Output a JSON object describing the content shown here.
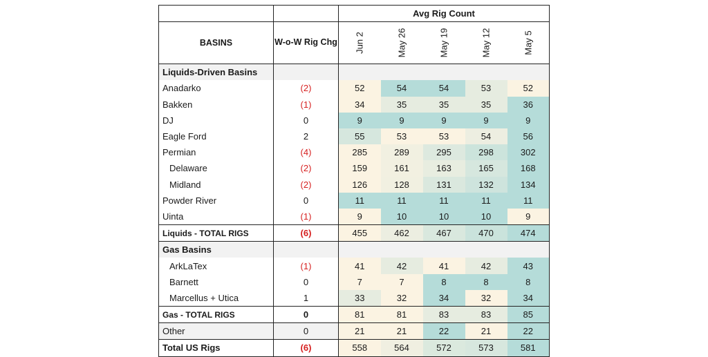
{
  "header": {
    "title": "Avg Rig Count",
    "basins_label": "BASINS",
    "change_label": "W-o-W Rig Chg",
    "dates": [
      "Jun 2",
      "May 26",
      "May 19",
      "May 12",
      "May 5"
    ]
  },
  "colors": {
    "low": "#fbf3e2",
    "mid": "#e6ece0",
    "high": "#b5dcd9",
    "negative": "#d62020",
    "section_bg": "#f2f2f2"
  },
  "sections": [
    {
      "label": "Liquids-Driven Basins",
      "rows": [
        {
          "name": "Anadarko",
          "indent": false,
          "chg": "(2)",
          "negative": true,
          "values": [
            52,
            54,
            54,
            53,
            52
          ]
        },
        {
          "name": "Bakken",
          "indent": false,
          "chg": "(1)",
          "negative": true,
          "values": [
            34,
            35,
            35,
            35,
            36
          ]
        },
        {
          "name": "DJ",
          "indent": false,
          "chg": "0",
          "negative": false,
          "values": [
            9,
            9,
            9,
            9,
            9
          ]
        },
        {
          "name": "Eagle Ford",
          "indent": false,
          "chg": "2",
          "negative": false,
          "values": [
            55,
            53,
            53,
            54,
            56
          ]
        },
        {
          "name": "Permian",
          "indent": false,
          "chg": "(4)",
          "negative": true,
          "values": [
            285,
            289,
            295,
            298,
            302
          ]
        },
        {
          "name": "Delaware",
          "indent": true,
          "chg": "(2)",
          "negative": true,
          "values": [
            159,
            161,
            163,
            165,
            168
          ]
        },
        {
          "name": "Midland",
          "indent": true,
          "chg": "(2)",
          "negative": true,
          "values": [
            126,
            128,
            131,
            132,
            134
          ]
        },
        {
          "name": "Powder River",
          "indent": false,
          "chg": "0",
          "negative": false,
          "values": [
            11,
            11,
            11,
            11,
            11
          ]
        },
        {
          "name": "Uinta",
          "indent": false,
          "chg": "(1)",
          "negative": true,
          "values": [
            9,
            10,
            10,
            10,
            9
          ]
        }
      ],
      "total": {
        "name": "Liquids - TOTAL RIGS",
        "chg": "(6)",
        "negative": true,
        "values": [
          455,
          462,
          467,
          470,
          474
        ]
      }
    },
    {
      "label": "Gas Basins",
      "rows": [
        {
          "name": "ArkLaTex",
          "indent": true,
          "chg": "(1)",
          "negative": true,
          "values": [
            41,
            42,
            41,
            42,
            43
          ]
        },
        {
          "name": "Barnett",
          "indent": true,
          "chg": "0",
          "negative": false,
          "values": [
            7,
            7,
            8,
            8,
            8
          ]
        },
        {
          "name": "Marcellus + Utica",
          "indent": true,
          "chg": "1",
          "negative": false,
          "values": [
            33,
            32,
            34,
            32,
            34
          ]
        }
      ],
      "total": {
        "name": "Gas - TOTAL RIGS",
        "chg": "0",
        "negative": false,
        "values": [
          81,
          81,
          83,
          83,
          85
        ]
      }
    }
  ],
  "other": {
    "name": "Other",
    "chg": "0",
    "negative": false,
    "values": [
      21,
      21,
      22,
      21,
      22
    ]
  },
  "grand_total": {
    "name": "Total US Rigs",
    "chg": "(6)",
    "negative": true,
    "values": [
      558,
      564,
      572,
      573,
      581
    ]
  }
}
